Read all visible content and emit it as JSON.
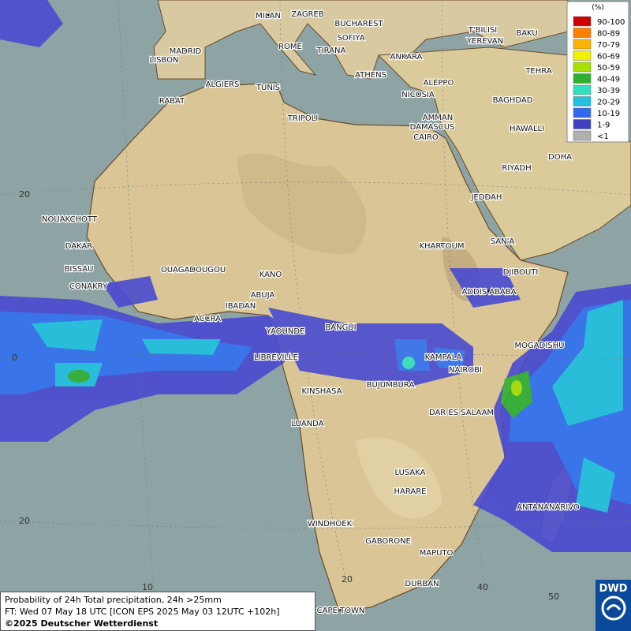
{
  "map": {
    "legend": {
      "title": "(%)",
      "entries": [
        {
          "label": "90-100",
          "color": "#cc0000"
        },
        {
          "label": "80-89",
          "color": "#ff7f00"
        },
        {
          "label": "70-79",
          "color": "#ffb300"
        },
        {
          "label": "60-69",
          "color": "#f0f000"
        },
        {
          "label": "50-59",
          "color": "#a8e000"
        },
        {
          "label": "40-49",
          "color": "#30b030"
        },
        {
          "label": "30-39",
          "color": "#30e0c0"
        },
        {
          "label": "20-29",
          "color": "#20c0e0"
        },
        {
          "label": "10-19",
          "color": "#3068f0"
        },
        {
          "label": "1-9",
          "color": "#4040c0"
        },
        {
          "label": "<1",
          "color": "#b0b0b0"
        }
      ]
    },
    "cities": [
      "MILAN",
      "ZAGREB",
      "BUCHAREST",
      "SOFIYA",
      "ROME",
      "TIRANA",
      "LISBON",
      "MADRID",
      "ANKARA",
      "T'BILISI",
      "BAKU",
      "YEREVAN",
      "TEHRA",
      "ALGIERS",
      "TUNIS",
      "ATHENS",
      "ALEPPO",
      "NICOSIA",
      "RABAT",
      "BAGHDAD",
      "DAMASCUS",
      "AMMAN",
      "TRIPOLI",
      "HAWALLI",
      "CAIRO",
      "DOHA",
      "RIYADH",
      "JEDDAH",
      "NOUAKCHOTT",
      "DAKAR",
      "SAN'A",
      "KHARTOUM",
      "BISSAU",
      "CONAKRY",
      "OUAGADOUGOU",
      "KANO",
      "DJIBOUTI",
      "ABUJA",
      "ADDIS ABABA",
      "IBADAN",
      "ACCRA",
      "BANGUI",
      "YAOUNDE",
      "MOGADISHU",
      "LIBREVILLE",
      "KAMPALA",
      "NAIROBI",
      "BUJUMBURA",
      "KINSHASA",
      "DAR ES SALAAM",
      "LUANDA",
      "LUSAKA",
      "HARARE",
      "ANTANANARIVO",
      "WINDHOEK",
      "GABORONE",
      "MAPUTO",
      "DURBAN",
      "CAPE TOWN"
    ],
    "lat_labels": [
      "20",
      "0",
      "20"
    ],
    "lon_labels": [
      "10",
      "20",
      "40",
      "50"
    ]
  },
  "footer": {
    "line1": "Probability of 24h Total precipitation, 24h >25mm",
    "line2": "FT: Wed 07 May 18 UTC [ICON EPS 2025 May 03 12UTC +102h]",
    "line3": "©2025 Deutscher Wetterdienst"
  },
  "logo": "DWD"
}
